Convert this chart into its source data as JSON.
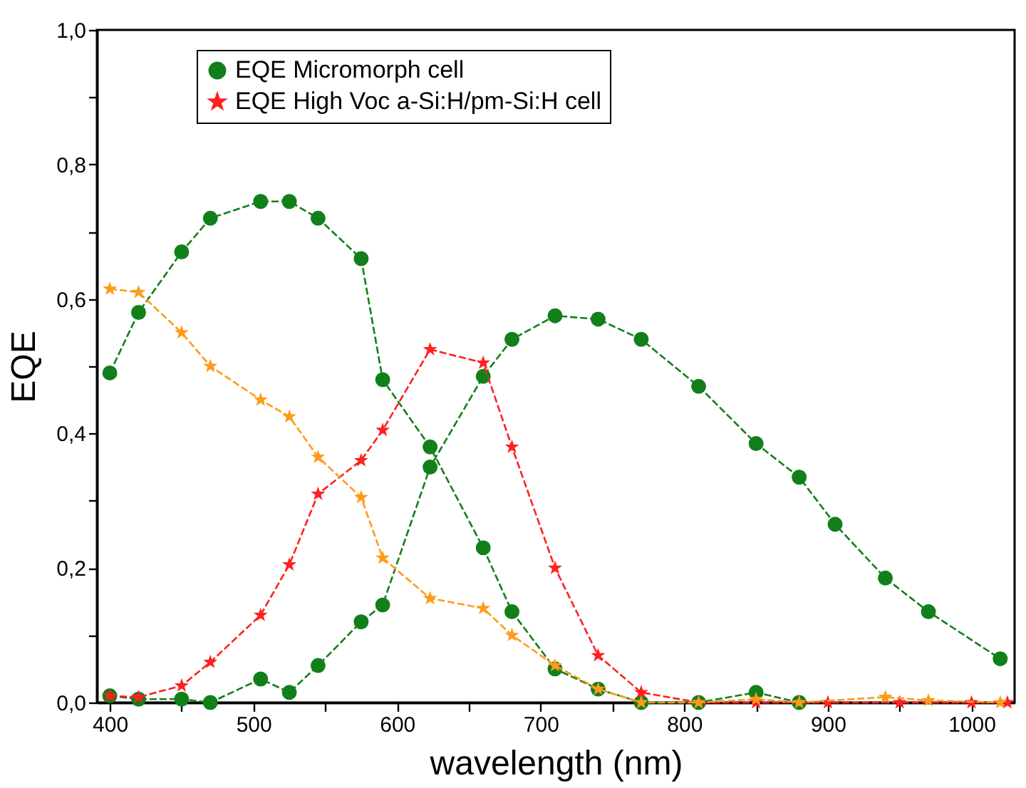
{
  "chart_data": {
    "type": "line",
    "xlabel": "wavelength (nm)",
    "ylabel": "EQE",
    "xlim": [
      391,
      1030
    ],
    "ylim": [
      0,
      1.0
    ],
    "xticks": [
      400,
      {
        "value": 450,
        "label": null
      },
      500,
      {
        "value": 550,
        "label": null
      },
      600,
      {
        "value": 650,
        "label": null
      },
      700,
      {
        "value": 750,
        "label": null
      },
      800,
      {
        "value": 850,
        "label": null
      },
      900,
      {
        "value": 950,
        "label": null
      },
      1000
    ],
    "yticks": [
      {
        "value": 0,
        "label": "0,0"
      },
      {
        "value": 0.1,
        "label": null
      },
      {
        "value": 0.2,
        "label": "0,2"
      },
      {
        "value": 0.3,
        "label": null
      },
      {
        "value": 0.4,
        "label": "0,4"
      },
      {
        "value": 0.5,
        "label": null
      },
      {
        "value": 0.6,
        "label": "0,6"
      },
      {
        "value": 0.7,
        "label": null
      },
      {
        "value": 0.8,
        "label": "0,8"
      },
      {
        "value": 0.9,
        "label": null
      },
      {
        "value": 1.0,
        "label": "1,0"
      }
    ],
    "grid": false,
    "legend": "top",
    "line_style": "dashed",
    "series": [
      {
        "name": "EQE Micromorph cell",
        "color": "#11801a",
        "marker": "circle",
        "x": [
          400,
          420,
          450,
          470,
          505,
          525,
          545,
          575,
          590,
          623,
          660,
          680,
          710,
          740,
          770,
          810,
          850,
          880
        ],
        "values": [
          0.49,
          0.58,
          0.67,
          0.72,
          0.745,
          0.745,
          0.72,
          0.66,
          0.48,
          0.38,
          0.23,
          0.135,
          0.05,
          0.02,
          0.0,
          0.0,
          0.015,
          0.0
        ]
      },
      {
        "color": "#11801a",
        "marker": "circle",
        "x": [
          400,
          420,
          450,
          470,
          505,
          525,
          545,
          575,
          590,
          623,
          660,
          680,
          710,
          740,
          770,
          810,
          850,
          880,
          905,
          940,
          970,
          1020
        ],
        "values": [
          0.01,
          0.005,
          0.005,
          0.0,
          0.035,
          0.015,
          0.055,
          0.12,
          0.145,
          0.35,
          0.485,
          0.54,
          0.575,
          0.57,
          0.54,
          0.47,
          0.385,
          0.335,
          0.265,
          0.185,
          0.135,
          0.065
        ]
      },
      {
        "name": "EQE High Voc a-Si:H/pm-Si:H cell",
        "color": "#ff2020",
        "marker": "star",
        "x": [
          400,
          420,
          450,
          470,
          505,
          525,
          545,
          575,
          590,
          623,
          660,
          680,
          710,
          740,
          770,
          810,
          850,
          900,
          950,
          1000,
          1025
        ],
        "values": [
          0.01,
          0.008,
          0.025,
          0.06,
          0.13,
          0.205,
          0.31,
          0.36,
          0.405,
          0.525,
          0.505,
          0.38,
          0.2,
          0.07,
          0.015,
          0.0,
          0.0,
          0.0,
          0.0,
          0.0,
          0.0
        ]
      },
      {
        "color": "#ff9a1a",
        "marker": "star",
        "x": [
          400,
          420,
          450,
          470,
          505,
          525,
          545,
          575,
          590,
          623,
          660,
          680,
          710,
          740,
          770,
          810,
          850,
          880,
          940,
          970,
          1020
        ],
        "values": [
          0.615,
          0.61,
          0.55,
          0.5,
          0.45,
          0.425,
          0.365,
          0.305,
          0.215,
          0.155,
          0.14,
          0.1,
          0.055,
          0.02,
          0.0,
          0.0,
          0.005,
          0.0,
          0.008,
          0.003,
          0.0
        ]
      }
    ]
  }
}
